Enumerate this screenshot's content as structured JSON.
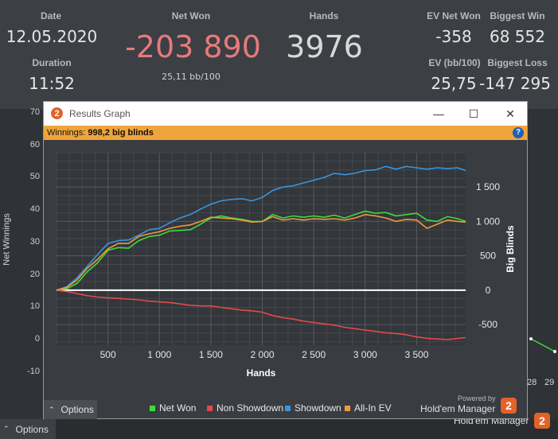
{
  "summary": {
    "date_label": "Date",
    "date": "12.05.2020",
    "duration_label": "Duration",
    "duration": "11:52",
    "netwon_label": "Net Won",
    "netwon": "-203 890",
    "bb100": "25,11 bb/100",
    "hands_label": "Hands",
    "hands": "3976",
    "ev_net_label": "EV Net Won",
    "ev_net": "-358",
    "ev_bb_label": "EV (bb/100)",
    "ev_bb": "25,75",
    "biggest_win_label": "Biggest Win",
    "biggest_win": "68 552",
    "biggest_loss_label": "Biggest Loss",
    "biggest_loss": "-147 295"
  },
  "background_graph": {
    "ylabel": "Net Winnings",
    "yticks": [
      "70",
      "60",
      "50",
      "40",
      "30",
      "20",
      "10",
      "0",
      "-10"
    ],
    "xticks": [
      "28",
      "29"
    ]
  },
  "bottom": {
    "options": "Options",
    "brand": "Hold'em Manager"
  },
  "dialog": {
    "icon_text": "2",
    "title": "Results Graph",
    "minimize": "—",
    "maximize": "☐",
    "close": "✕",
    "winnings_label": "Winnings:",
    "winnings_value": "998,2 big blinds",
    "help": "?",
    "options": "Options",
    "powered": "Powered by",
    "brand": "Hold'em Manager",
    "logo": "2"
  },
  "chart_data": {
    "type": "line",
    "xlabel": "Hands",
    "ylabel": "Big Blinds",
    "xlim": [
      0,
      3976
    ],
    "ylim": [
      -800,
      2000
    ],
    "xticks": [
      500,
      1000,
      1500,
      2000,
      2500,
      3000,
      3500
    ],
    "xtick_labels": [
      "500",
      "1 000",
      "1 500",
      "2 000",
      "2 500",
      "3 000",
      "3 500"
    ],
    "yticks": [
      -500,
      0,
      500,
      1000,
      1500
    ],
    "ytick_labels": [
      "-500",
      "0",
      "500",
      "1 000",
      "1 500"
    ],
    "legend_position": "bottom",
    "grid": true,
    "series": [
      {
        "name": "Net Won",
        "color": "#3ddc3d",
        "x": [
          0,
          100,
          200,
          300,
          400,
          500,
          600,
          700,
          800,
          900,
          1000,
          1100,
          1200,
          1300,
          1400,
          1500,
          1600,
          1700,
          1800,
          1900,
          2000,
          2100,
          2200,
          2300,
          2400,
          2500,
          2600,
          2700,
          2800,
          2900,
          3000,
          3100,
          3200,
          3300,
          3400,
          3500,
          3600,
          3700,
          3800,
          3900,
          3976
        ],
        "values": [
          0,
          20,
          100,
          270,
          400,
          580,
          620,
          610,
          720,
          780,
          800,
          860,
          870,
          880,
          960,
          1050,
          1080,
          1050,
          1030,
          1000,
          1000,
          1100,
          1050,
          1080,
          1060,
          1080,
          1060,
          1090,
          1050,
          1100,
          1150,
          1120,
          1130,
          1080,
          1100,
          1120,
          1020,
          1000,
          1070,
          1040,
          1000
        ]
      },
      {
        "name": "Non Showdown",
        "color": "#e24a4a",
        "x": [
          0,
          100,
          200,
          300,
          400,
          500,
          600,
          700,
          800,
          900,
          1000,
          1100,
          1200,
          1300,
          1400,
          1500,
          1600,
          1700,
          1800,
          1900,
          2000,
          2100,
          2200,
          2300,
          2400,
          2500,
          2600,
          2700,
          2800,
          2900,
          3000,
          3100,
          3200,
          3300,
          3400,
          3500,
          3600,
          3700,
          3800,
          3900,
          3976
        ],
        "values": [
          0,
          -20,
          -50,
          -80,
          -100,
          -110,
          -120,
          -130,
          -140,
          -160,
          -170,
          -180,
          -200,
          -220,
          -230,
          -230,
          -250,
          -270,
          -290,
          -300,
          -320,
          -370,
          -400,
          -420,
          -450,
          -470,
          -490,
          -510,
          -540,
          -560,
          -580,
          -600,
          -620,
          -630,
          -650,
          -680,
          -700,
          -710,
          -720,
          -700,
          -690
        ]
      },
      {
        "name": "Showdown",
        "color": "#3a95dd",
        "x": [
          0,
          100,
          200,
          300,
          400,
          500,
          600,
          700,
          800,
          900,
          1000,
          1100,
          1200,
          1300,
          1400,
          1500,
          1600,
          1700,
          1800,
          1900,
          2000,
          2100,
          2200,
          2300,
          2400,
          2500,
          2600,
          2700,
          2800,
          2900,
          3000,
          3100,
          3200,
          3300,
          3400,
          3500,
          3600,
          3700,
          3800,
          3900,
          3976
        ],
        "values": [
          0,
          50,
          180,
          350,
          520,
          680,
          720,
          730,
          800,
          880,
          900,
          980,
          1050,
          1100,
          1180,
          1250,
          1300,
          1320,
          1330,
          1300,
          1350,
          1450,
          1500,
          1520,
          1560,
          1600,
          1640,
          1700,
          1680,
          1700,
          1740,
          1750,
          1800,
          1760,
          1800,
          1780,
          1760,
          1780,
          1770,
          1780,
          1740
        ]
      },
      {
        "name": "All-In EV",
        "color": "#f09a3c",
        "x": [
          0,
          100,
          200,
          300,
          400,
          500,
          600,
          700,
          800,
          900,
          1000,
          1100,
          1200,
          1300,
          1400,
          1500,
          1600,
          1700,
          1800,
          1900,
          2000,
          2100,
          2200,
          2300,
          2400,
          2500,
          2600,
          2700,
          2800,
          2900,
          3000,
          3100,
          3200,
          3300,
          3400,
          3500,
          3600,
          3700,
          3800,
          3900,
          3976
        ],
        "values": [
          0,
          40,
          150,
          320,
          450,
          600,
          680,
          680,
          780,
          820,
          850,
          900,
          930,
          950,
          1000,
          1060,
          1050,
          1040,
          1020,
          990,
          1000,
          1070,
          1020,
          1040,
          1020,
          1040,
          1030,
          1040,
          1020,
          1050,
          1100,
          1080,
          1050,
          1000,
          1030,
          1020,
          900,
          960,
          1020,
          1000,
          990
        ]
      }
    ]
  }
}
